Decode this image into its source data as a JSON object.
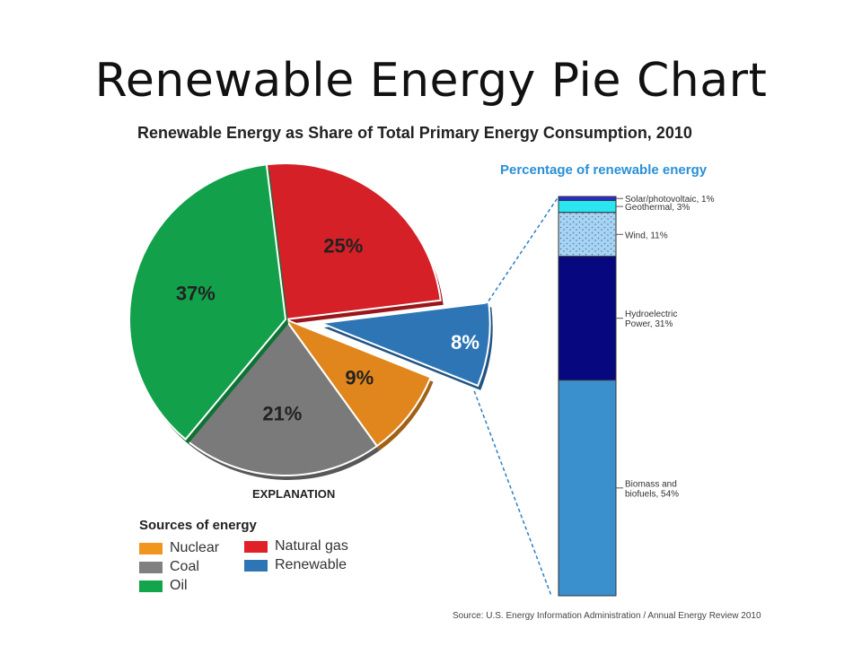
{
  "slide": {
    "title": "Renewable Energy Pie Chart"
  },
  "chart_data": [
    {
      "type": "pie",
      "title": "Renewable Energy as Share of Total Primary Energy Consumption, 2010",
      "slices": [
        {
          "name": "Natural gas",
          "value": 25,
          "label": "25%",
          "color": "#d42026"
        },
        {
          "name": "Renewable",
          "value": 8,
          "label": "8%",
          "color": "#2e75b6",
          "exploded": true
        },
        {
          "name": "Nuclear",
          "value": 9,
          "label": "9%",
          "color": "#e0861c"
        },
        {
          "name": "Coal",
          "value": 21,
          "label": "21%",
          "color": "#7a7a7a"
        },
        {
          "name": "Oil",
          "value": 37,
          "label": "37%",
          "color": "#13a04a"
        }
      ],
      "legend": {
        "heading": "EXPLANATION",
        "title": "Sources of energy",
        "items": [
          {
            "label": "Nuclear",
            "color": "#f0961e"
          },
          {
            "label": "Natural gas",
            "color": "#e02128"
          },
          {
            "label": "Coal",
            "color": "#808080"
          },
          {
            "label": "Renewable",
            "color": "#2e75b6"
          },
          {
            "label": "Oil",
            "color": "#12a54a"
          }
        ]
      }
    },
    {
      "type": "bar",
      "title": "Percentage of renewable energy",
      "stacked": true,
      "segments": [
        {
          "name": "Solar/photovoltaic",
          "value": 1,
          "label": "Solar/photovoltaic, 1%",
          "color": "#2b2bcf"
        },
        {
          "name": "Geothermal",
          "value": 3,
          "label": "Geothermal, 3%",
          "color": "#29e6f2"
        },
        {
          "name": "Wind",
          "value": 11,
          "label": "Wind, 11%",
          "color": "#a9d3f0",
          "pattern": "dotted"
        },
        {
          "name": "Hydroelectric Power",
          "value": 31,
          "label_lines": [
            "Hydroelectric",
            "Power, 31%"
          ],
          "color": "#07077f"
        },
        {
          "name": "Biomass and biofuels",
          "value": 54,
          "label_lines": [
            "Biomass and",
            "biofuels, 54%"
          ],
          "color": "#3a8fcd"
        }
      ]
    }
  ],
  "source": "Source: U.S. Energy Information Administration / Annual Energy Review 2010"
}
